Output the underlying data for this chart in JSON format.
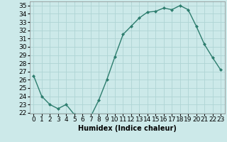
{
  "xlabel": "Humidex (Indice chaleur)",
  "x": [
    0,
    1,
    2,
    3,
    4,
    5,
    6,
    7,
    8,
    9,
    10,
    11,
    12,
    13,
    14,
    15,
    16,
    17,
    18,
    19,
    20,
    21,
    22,
    23
  ],
  "y": [
    26.5,
    24.0,
    23.0,
    22.5,
    23.0,
    21.8,
    21.5,
    21.5,
    23.5,
    26.0,
    28.8,
    31.5,
    32.5,
    33.5,
    34.2,
    34.3,
    34.7,
    34.5,
    35.0,
    34.5,
    32.5,
    30.3,
    28.7,
    27.2
  ],
  "ylim": [
    21.9,
    35.5
  ],
  "yticks": [
    22,
    23,
    24,
    25,
    26,
    27,
    28,
    29,
    30,
    31,
    32,
    33,
    34,
    35
  ],
  "line_color": "#2d7d6e",
  "marker": "D",
  "marker_size": 2.0,
  "bg_color": "#cce9e9",
  "grid_color": "#afd4d4",
  "label_fontsize": 7,
  "tick_fontsize": 6.5
}
